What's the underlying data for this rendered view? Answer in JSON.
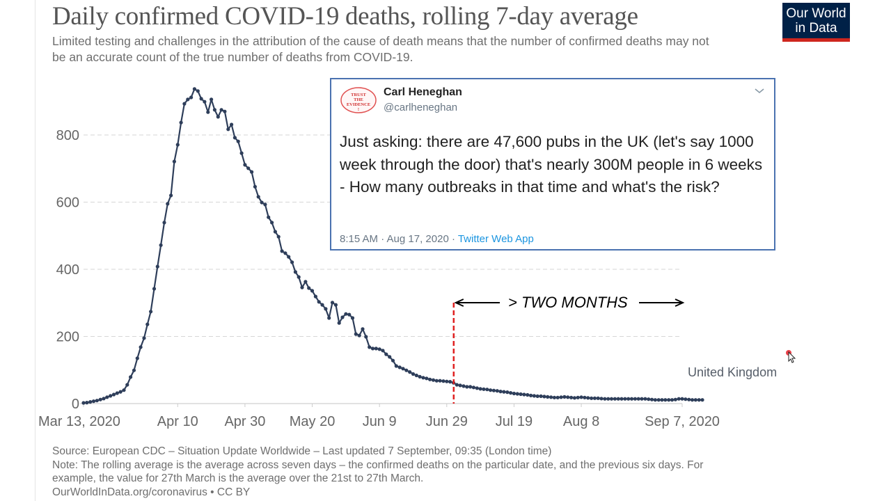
{
  "title": "Daily confirmed COVID-19 deaths, rolling 7-day average",
  "subtitle": "Limited testing and challenges in the attribution of the cause of death means that the number of confirmed deaths may not be an accurate count of the true number of deaths from COVID-19.",
  "logo": {
    "line1": "Our World",
    "line2": "in Data",
    "bg_color": "#002147",
    "accent_color": "#ce261e"
  },
  "tweet": {
    "author_name": "Carl Heneghan",
    "author_handle": "@carlheneghan",
    "avatar_text": "TRUST THE EVIDENCE",
    "body": "Just asking: there are 47,600 pubs in the UK (let's say 1000 week through the door) that's nearly 300M people in 6 weeks - How many outbreaks in that time and what's the risk?",
    "time": "8:15 AM · Aug 17, 2020 · ",
    "app": "Twitter Web App",
    "border_color": "#4a72b0",
    "link_color": "#1b95e0"
  },
  "annotation": {
    "text": "> TWO MONTHS",
    "marker_date": "Jun 29",
    "marker_color": "#e02020"
  },
  "footer": {
    "source": "Source: European CDC – Situation Update Worldwide – Last updated 7 September, 09:35 (London time)",
    "note_line1": "Note: The rolling average is the average across seven days – the confirmed deaths on the particular date, and the previous six days. For",
    "note_line2": "example, the value for 27th March is the average over the 21st to 27th March.",
    "license": "OurWorldInData.org/coronavirus • CC BY"
  },
  "chart_data": {
    "type": "line",
    "title": "Daily confirmed COVID-19 deaths, rolling 7-day average",
    "xlabel": "",
    "ylabel": "",
    "x_start": "Mar 13, 2020",
    "x_end": "Sep 7, 2020",
    "x_tick_labels": [
      "Mar 13, 2020",
      "Apr 10",
      "Apr 30",
      "May 20",
      "Jun 9",
      "Jun 29",
      "Jul 19",
      "Aug 8",
      "Sep 7, 2020"
    ],
    "x_tick_days": [
      0,
      28,
      48,
      68,
      88,
      108,
      128,
      148,
      178
    ],
    "y_ticks": [
      0,
      200,
      400,
      600,
      800
    ],
    "ylim": [
      0,
      950
    ],
    "grid": true,
    "series_color": "#2e3e5a",
    "series": [
      {
        "name": "United Kingdom",
        "values": [
          2,
          3,
          5,
          7,
          9,
          12,
          15,
          19,
          23,
          27,
          31,
          35,
          40,
          56,
          79,
          99,
          135,
          168,
          195,
          236,
          274,
          342,
          408,
          472,
          539,
          595,
          620,
          721,
          771,
          837,
          893,
          906,
          912,
          937,
          931,
          908,
          899,
          868,
          906,
          875,
          854,
          875,
          870,
          817,
          831,
          792,
          781,
          746,
          711,
          701,
          690,
          646,
          616,
          599,
          593,
          555,
          539,
          512,
          497,
          454,
          448,
          437,
          421,
          392,
          377,
          346,
          363,
          344,
          336,
          319,
          303,
          294,
          282,
          255,
          301,
          294,
          240,
          257,
          267,
          265,
          255,
          207,
          203,
          222,
          199,
          168,
          164,
          164,
          162,
          158,
          147,
          139,
          128,
          112,
          108,
          104,
          99,
          94,
          88,
          84,
          80,
          77,
          75,
          72,
          70,
          68,
          68,
          67,
          66,
          65,
          62,
          56,
          54,
          52,
          50,
          50,
          48,
          46,
          44,
          43,
          42,
          40,
          39,
          38,
          36,
          35,
          34,
          32,
          30,
          29,
          28,
          27,
          26,
          24,
          23,
          22,
          22,
          21,
          20,
          19,
          18,
          18,
          19,
          20,
          19,
          18,
          17,
          18,
          19,
          18,
          17,
          16,
          16,
          16,
          15,
          14,
          14,
          14,
          14,
          14,
          14,
          14,
          14,
          14,
          14,
          14,
          14,
          14,
          13,
          12,
          11,
          11,
          11,
          11,
          11,
          11,
          12,
          14,
          14,
          13,
          12,
          11,
          11,
          11,
          11
        ]
      }
    ]
  }
}
